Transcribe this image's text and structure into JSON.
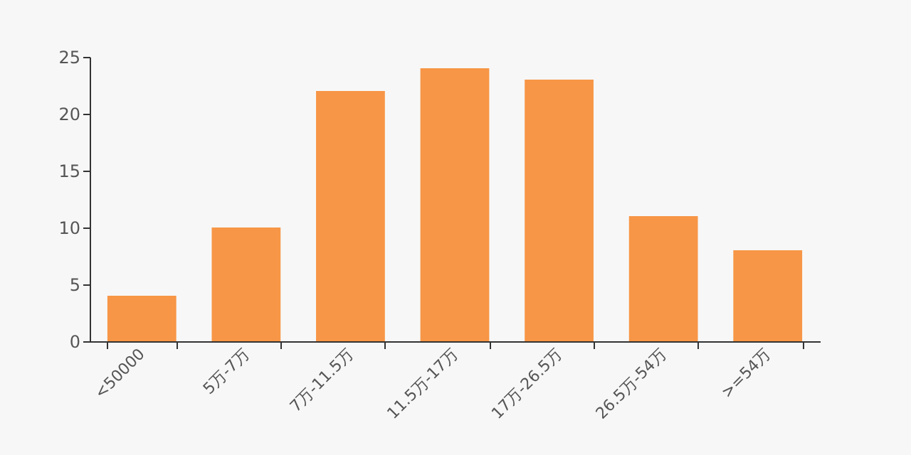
{
  "chart_data": {
    "type": "bar",
    "categories": [
      "<50000",
      "5万-7万",
      "7万-11.5万",
      "11.5万-17万",
      "17万-26.5万",
      "26.5万-54万",
      ">=54万"
    ],
    "values": [
      4,
      10,
      22,
      24,
      23,
      11,
      8
    ],
    "color": "#f79646",
    "ylim": [
      0,
      25
    ],
    "yticks": [
      0,
      5,
      10,
      15,
      20,
      25
    ],
    "grid": false
  }
}
